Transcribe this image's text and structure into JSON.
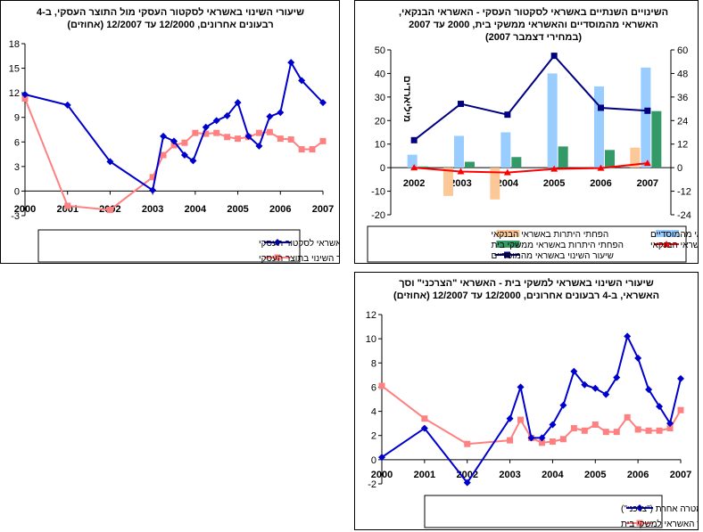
{
  "chart_data": [
    {
      "type": "line",
      "title": [
        "שיעורי השינוי באשראי לסקטור העסקי מול התוצר העסקי, ב-4",
        "רבעונים אחרונים, 12/2000 עד 12/2007 (אחוזים)"
      ],
      "x_ticks": [
        "2000",
        "2001",
        "2002",
        "2003",
        "2004",
        "2005",
        "2006",
        "2007"
      ],
      "ylim": [
        -3,
        18
      ],
      "y_ticks": [
        "-3",
        "0",
        "3",
        "6",
        "9",
        "12",
        "15",
        "18"
      ],
      "grid": false,
      "legend_position": "bottom",
      "series": [
        {
          "name": "שיעור השינוי באשראי לסקטור העסקי",
          "color": "#0000cc",
          "marker": "diamond",
          "points": [
            [
              0,
              11.8
            ],
            [
              1,
              10.5
            ],
            [
              2,
              3.6
            ],
            [
              3,
              0.1
            ],
            [
              3.25,
              6.7
            ],
            [
              3.5,
              6.1
            ],
            [
              3.75,
              4.4
            ],
            [
              3.95,
              3.7
            ],
            [
              4.25,
              7.8
            ],
            [
              4.5,
              8.6
            ],
            [
              4.75,
              9.2
            ],
            [
              5,
              10.8
            ],
            [
              5.25,
              6.7
            ],
            [
              5.5,
              5.5
            ],
            [
              5.75,
              9.1
            ],
            [
              6,
              9.6
            ],
            [
              6.25,
              15.7
            ],
            [
              6.5,
              13.5
            ],
            [
              7,
              10.8
            ]
          ]
        },
        {
          "name": "שיעור השינוי בתוצר העסקי",
          "color": "#ff8080",
          "marker": "square",
          "points": [
            [
              0,
              11.3
            ],
            [
              1,
              -1.8
            ],
            [
              2,
              -2.3
            ],
            [
              3,
              1.7
            ],
            [
              3.25,
              4.4
            ],
            [
              3.5,
              5.6
            ],
            [
              3.75,
              5.9
            ],
            [
              4,
              7.1
            ],
            [
              4.25,
              7.0
            ],
            [
              4.5,
              7.1
            ],
            [
              4.75,
              6.6
            ],
            [
              5,
              6.4
            ],
            [
              5.25,
              6.6
            ],
            [
              5.5,
              7.1
            ],
            [
              5.75,
              7.2
            ],
            [
              6,
              6.4
            ],
            [
              6.25,
              6.3
            ],
            [
              6.5,
              5.1
            ],
            [
              6.75,
              5.1
            ],
            [
              7,
              6.1
            ]
          ]
        }
      ]
    },
    {
      "type": "bar",
      "title": [
        "השינויים השנתיים באשראי לסקטור העסקי - האשראי הבנקאי,",
        "האשראי מהמוסדיים והאשראי ממשקי בית, 2000 עד 2007",
        "(במחירי דצמבר 2007)"
      ],
      "categories": [
        "2002",
        "2003",
        "2004",
        "2005",
        "2006",
        "2007"
      ],
      "ylabel_left": "מיליארדים",
      "ylim_left": [
        -20,
        50
      ],
      "y_ticks_left": [
        "-20",
        "-10",
        "0",
        "10",
        "20",
        "30",
        "40",
        "50"
      ],
      "ylim_right": [
        -24,
        60
      ],
      "y_ticks_right": [
        "-24",
        "-12",
        "0",
        "12",
        "24",
        "36",
        "48",
        "60"
      ],
      "legend_position": "bottom",
      "series": [
        {
          "name": "הפחתי היתרות באשראי הבנקאי",
          "kind": "bar",
          "axis": "left",
          "color": "#fcc898",
          "values": [
            0,
            -12,
            -13.5,
            0,
            0,
            8.5
          ]
        },
        {
          "name": "הפחתי היתרות באשראי מהמוסדיים",
          "kind": "bar",
          "axis": "left",
          "color": "#99ccff",
          "values": [
            5.5,
            13.5,
            15,
            40,
            34.5,
            42.5
          ]
        },
        {
          "name": "הפחתי היתרות באשראי ממשקי בית",
          "kind": "bar",
          "axis": "left",
          "color": "#339966",
          "values": [
            0.5,
            2.5,
            4.5,
            9,
            7.5,
            24
          ]
        },
        {
          "name": "שיעור תשינוי באשראי הבנקאי",
          "kind": "line",
          "axis": "right",
          "color": "#ff0000",
          "marker": "triangle",
          "values": [
            0,
            -2,
            -2.5,
            -0.7,
            -0.2,
            2.3
          ]
        },
        {
          "name": "שיעור השינוי באשראי מהמוסדיים",
          "kind": "line",
          "axis": "right",
          "color": "#000080",
          "marker": "square",
          "values": [
            14,
            32.5,
            27,
            57,
            30.5,
            29
          ]
        }
      ]
    },
    {
      "type": "line",
      "title": [
        "שיעורי השינוי באשראי למשקי בית - האשראי \"הצרכני\" וסך",
        "האשראי, ב-4 רבעונים אחרונים, 12/2000 עד 12/2007 (אחוזים)"
      ],
      "x_ticks": [
        "2000",
        "2001",
        "2002",
        "2003",
        "2004",
        "2005",
        "2006",
        "2007"
      ],
      "ylim": [
        -2,
        12
      ],
      "y_ticks": [
        "-2",
        "0",
        "2",
        "4",
        "6",
        "8",
        "10",
        "12"
      ],
      "grid": false,
      "legend_position": "bottom",
      "series": [
        {
          "name": "שיעור השינוי באשראי למטרה אחרת (\"צרכני\")",
          "color": "#0000cc",
          "marker": "diamond",
          "points": [
            [
              0,
              0.2
            ],
            [
              1,
              2.6
            ],
            [
              2,
              -1.9
            ],
            [
              3,
              3.4
            ],
            [
              3.25,
              6.0
            ],
            [
              3.5,
              1.8
            ],
            [
              3.75,
              1.8
            ],
            [
              4,
              2.9
            ],
            [
              4.25,
              4.5
            ],
            [
              4.5,
              7.3
            ],
            [
              4.75,
              6.2
            ],
            [
              5,
              5.9
            ],
            [
              5.25,
              5.4
            ],
            [
              5.5,
              6.8
            ],
            [
              5.75,
              10.2
            ],
            [
              6,
              8.4
            ],
            [
              6.25,
              5.8
            ],
            [
              6.5,
              4.4
            ],
            [
              6.75,
              3.0
            ],
            [
              7,
              6.7
            ]
          ]
        },
        {
          "name": "שיעור השינוי בסך האשראי למשקי בית",
          "color": "#ff8080",
          "marker": "square",
          "points": [
            [
              0,
              6.1
            ],
            [
              1,
              3.4
            ],
            [
              2,
              1.3
            ],
            [
              3,
              1.6
            ],
            [
              3.25,
              3.3
            ],
            [
              3.5,
              1.8
            ],
            [
              3.75,
              1.4
            ],
            [
              4,
              1.5
            ],
            [
              4.25,
              1.7
            ],
            [
              4.5,
              2.6
            ],
            [
              4.75,
              2.4
            ],
            [
              5,
              2.9
            ],
            [
              5.25,
              2.3
            ],
            [
              5.5,
              2.3
            ],
            [
              5.75,
              3.5
            ],
            [
              6,
              2.5
            ],
            [
              6.25,
              2.4
            ],
            [
              6.5,
              2.4
            ],
            [
              6.75,
              2.6
            ],
            [
              7,
              4.1
            ]
          ]
        }
      ]
    }
  ]
}
